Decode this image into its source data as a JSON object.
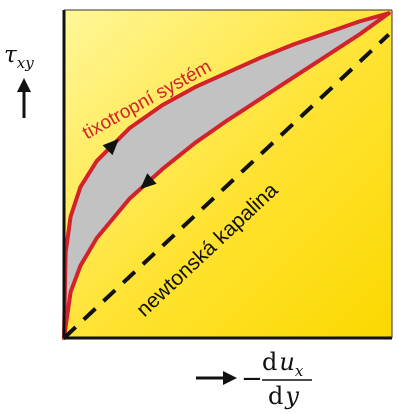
{
  "chart_data": {
    "type": "line",
    "title": "",
    "ylabel": "τxy",
    "xlabel": "−du_x/dy",
    "xlabel_parts": {
      "sign": "−",
      "num_d": "d",
      "num_u": "u",
      "num_sub": "x",
      "den_d": "d",
      "den_y": "y"
    },
    "xlim": [
      0,
      10
    ],
    "ylim": [
      0,
      10
    ],
    "grid": false,
    "background": "yellow-gradient",
    "series": [
      {
        "name": "tixotropní systém",
        "color": "#d2222a",
        "role": "hysteresis-loop",
        "upper_curve": {
          "x": [
            0.0,
            0.05,
            0.2,
            0.5,
            1.0,
            2.0,
            3.0,
            4.0,
            5.0,
            6.0,
            7.0,
            8.0,
            9.0,
            9.9
          ],
          "y": [
            0.0,
            2.6,
            3.7,
            4.6,
            5.4,
            6.4,
            7.1,
            7.65,
            8.1,
            8.55,
            8.95,
            9.3,
            9.65,
            9.9
          ]
        },
        "lower_curve": {
          "x": [
            9.9,
            9.0,
            8.0,
            7.0,
            6.0,
            5.0,
            4.0,
            3.0,
            2.0,
            1.0,
            0.5,
            0.2,
            0.0
          ],
          "y": [
            9.9,
            9.25,
            8.6,
            7.95,
            7.3,
            6.65,
            5.95,
            5.15,
            4.25,
            3.05,
            2.2,
            1.4,
            0.0
          ]
        },
        "fill_color": "#c2c2c2"
      },
      {
        "name": "newtonská kapalina",
        "color": "#111111",
        "dashed": true,
        "x": [
          0,
          9.9
        ],
        "y": [
          0,
          9.25
        ]
      }
    ],
    "annotations": [
      {
        "text": "tixotropní systém",
        "color": "#d2222a"
      },
      {
        "text": "newtonská kapalina",
        "color": "#111111"
      }
    ],
    "arrows": [
      {
        "role": "loading-direction",
        "on": "upper_curve"
      },
      {
        "role": "unloading-direction",
        "on": "lower_curve"
      }
    ],
    "colors": {
      "background_top": "#fff799",
      "background_mid": "#ffe230",
      "background_bottom": "#fbd800",
      "axis": "#111111",
      "loop": "#d2222a",
      "loop_fill": "#c2c2c2"
    }
  }
}
